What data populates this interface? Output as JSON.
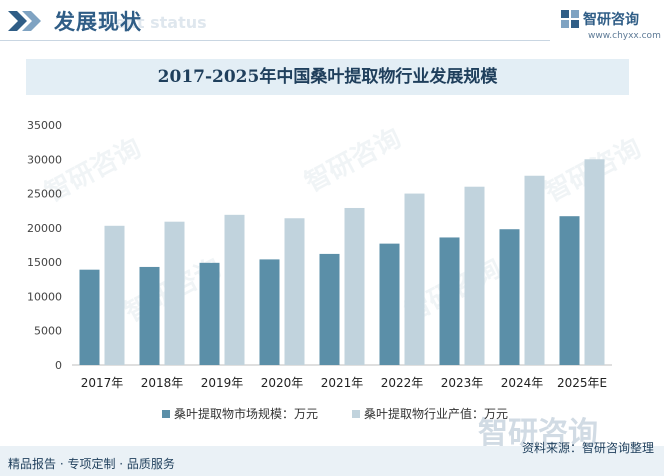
{
  "header": {
    "title": "发展现状",
    "subtitle": "ment status"
  },
  "logo": {
    "name": "智研咨询",
    "url": "www.chyxx.com"
  },
  "chart_data": {
    "type": "bar",
    "title": "2017-2025年中国桑叶提取物行业发展规模",
    "categories": [
      "2017年",
      "2018年",
      "2019年",
      "2020年",
      "2021年",
      "2022年",
      "2023年",
      "2024年",
      "2025年E"
    ],
    "series": [
      {
        "name": "桑叶提取物市场规模：万元",
        "color": "#5b8fa8",
        "values": [
          13900,
          14300,
          14900,
          15400,
          16200,
          17700,
          18600,
          19800,
          21700
        ]
      },
      {
        "name": "桑叶提取物行业产值：万元",
        "color": "#c1d3dd",
        "values": [
          20300,
          20900,
          21900,
          21400,
          22900,
          25000,
          26000,
          27600,
          30000
        ]
      }
    ],
    "yticks": [
      0,
      5000,
      10000,
      15000,
      20000,
      25000,
      30000,
      35000
    ],
    "ylim": [
      0,
      35000
    ],
    "grid": false,
    "legend_position": "bottom"
  },
  "watermark": "智研咨询",
  "footer": {
    "left": "精品报告 · 专项定制 · 品质服务",
    "right": "资料来源：智研咨询整理"
  }
}
